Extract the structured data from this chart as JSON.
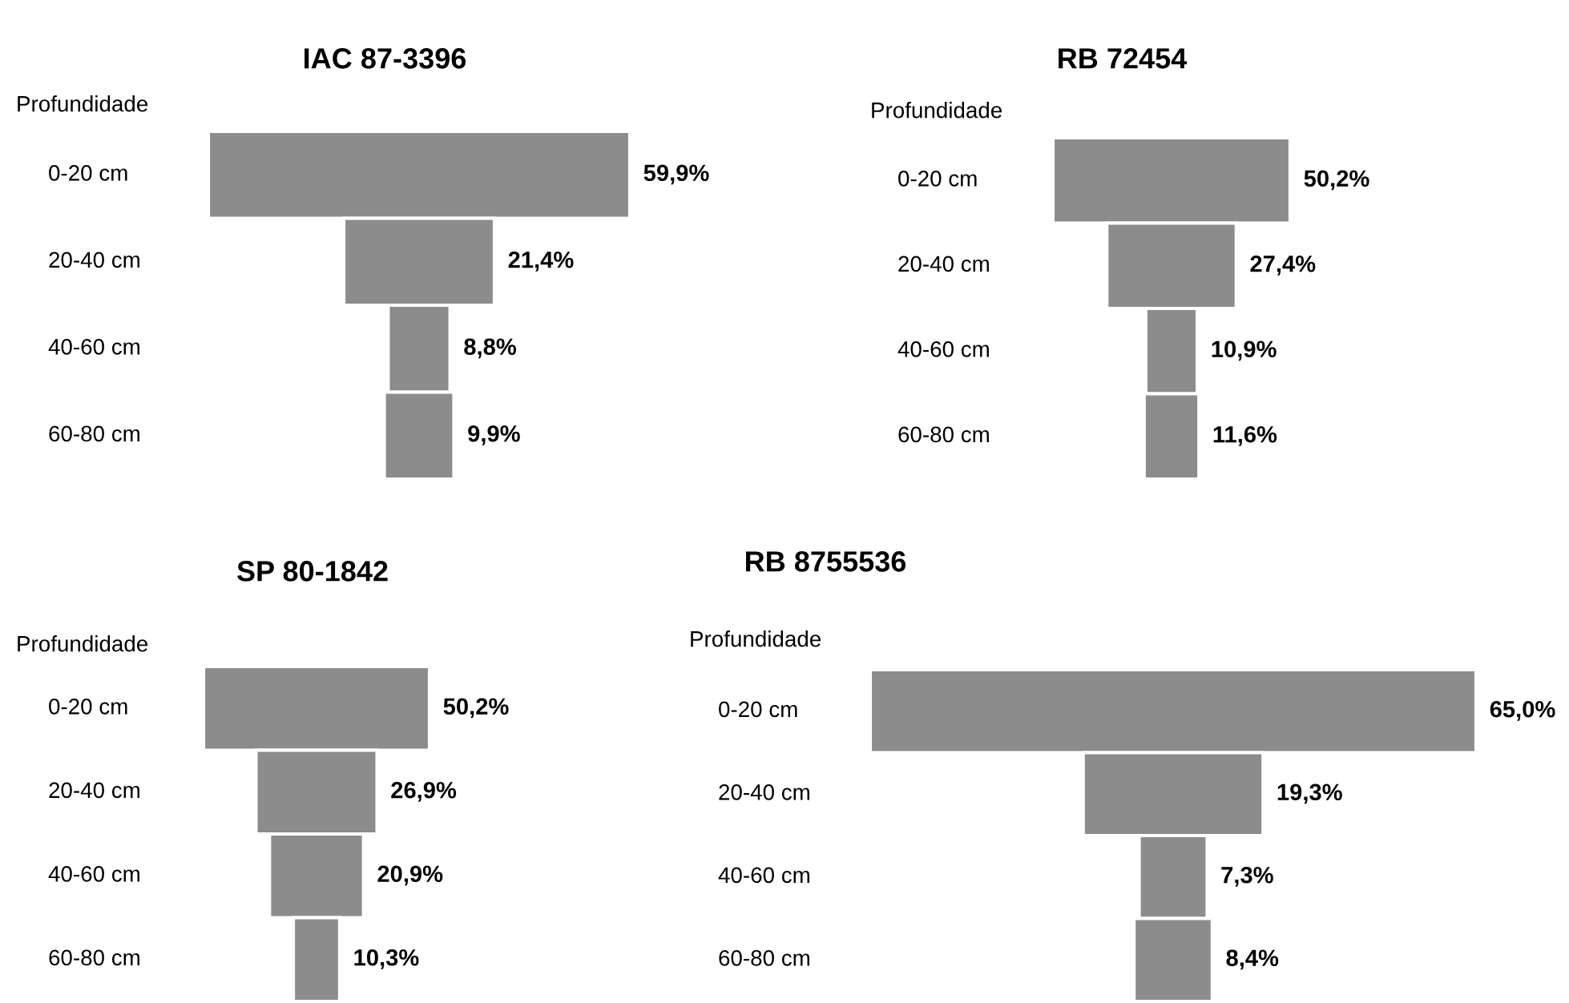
{
  "chart_data": [
    {
      "type": "other",
      "title": "IAC 87-3396",
      "ylabel": "Profundidade",
      "categories": [
        "0-20 cm",
        "20-40 cm",
        "40-60 cm",
        "60-80 cm"
      ],
      "values": [
        59.9,
        21.4,
        8.8,
        9.9
      ],
      "value_labels": [
        "59,9%",
        "21,4%",
        "8,8%",
        "9,9%"
      ],
      "color": "#8c8c8c"
    },
    {
      "type": "other",
      "title": "RB 72454",
      "ylabel": "Profundidade",
      "categories": [
        "0-20 cm",
        "20-40 cm",
        "40-60 cm",
        "60-80 cm"
      ],
      "values": [
        50.2,
        27.4,
        10.9,
        11.6
      ],
      "value_labels": [
        "50,2%",
        "27,4%",
        "10,9%",
        "11,6%"
      ],
      "color": "#8c8c8c"
    },
    {
      "type": "other",
      "title": "SP 80-1842",
      "ylabel": "Profundidade",
      "categories": [
        "0-20 cm",
        "20-40 cm",
        "40-60 cm",
        "60-80 cm"
      ],
      "values": [
        50.2,
        26.9,
        20.9,
        10.3
      ],
      "value_labels": [
        "50,2%",
        "26,9%",
        "20,9%",
        "10,3%"
      ],
      "color": "#8c8c8c"
    },
    {
      "type": "other",
      "title": "RB 8755536",
      "ylabel": "Profundidade",
      "categories": [
        "0-20 cm",
        "20-40 cm",
        "40-60 cm",
        "60-80 cm"
      ],
      "values": [
        65.0,
        19.3,
        7.3,
        8.4
      ],
      "value_labels": [
        "65,0%",
        "19,3%",
        "7,3%",
        "8,4%"
      ],
      "color": "#8c8c8c"
    }
  ]
}
